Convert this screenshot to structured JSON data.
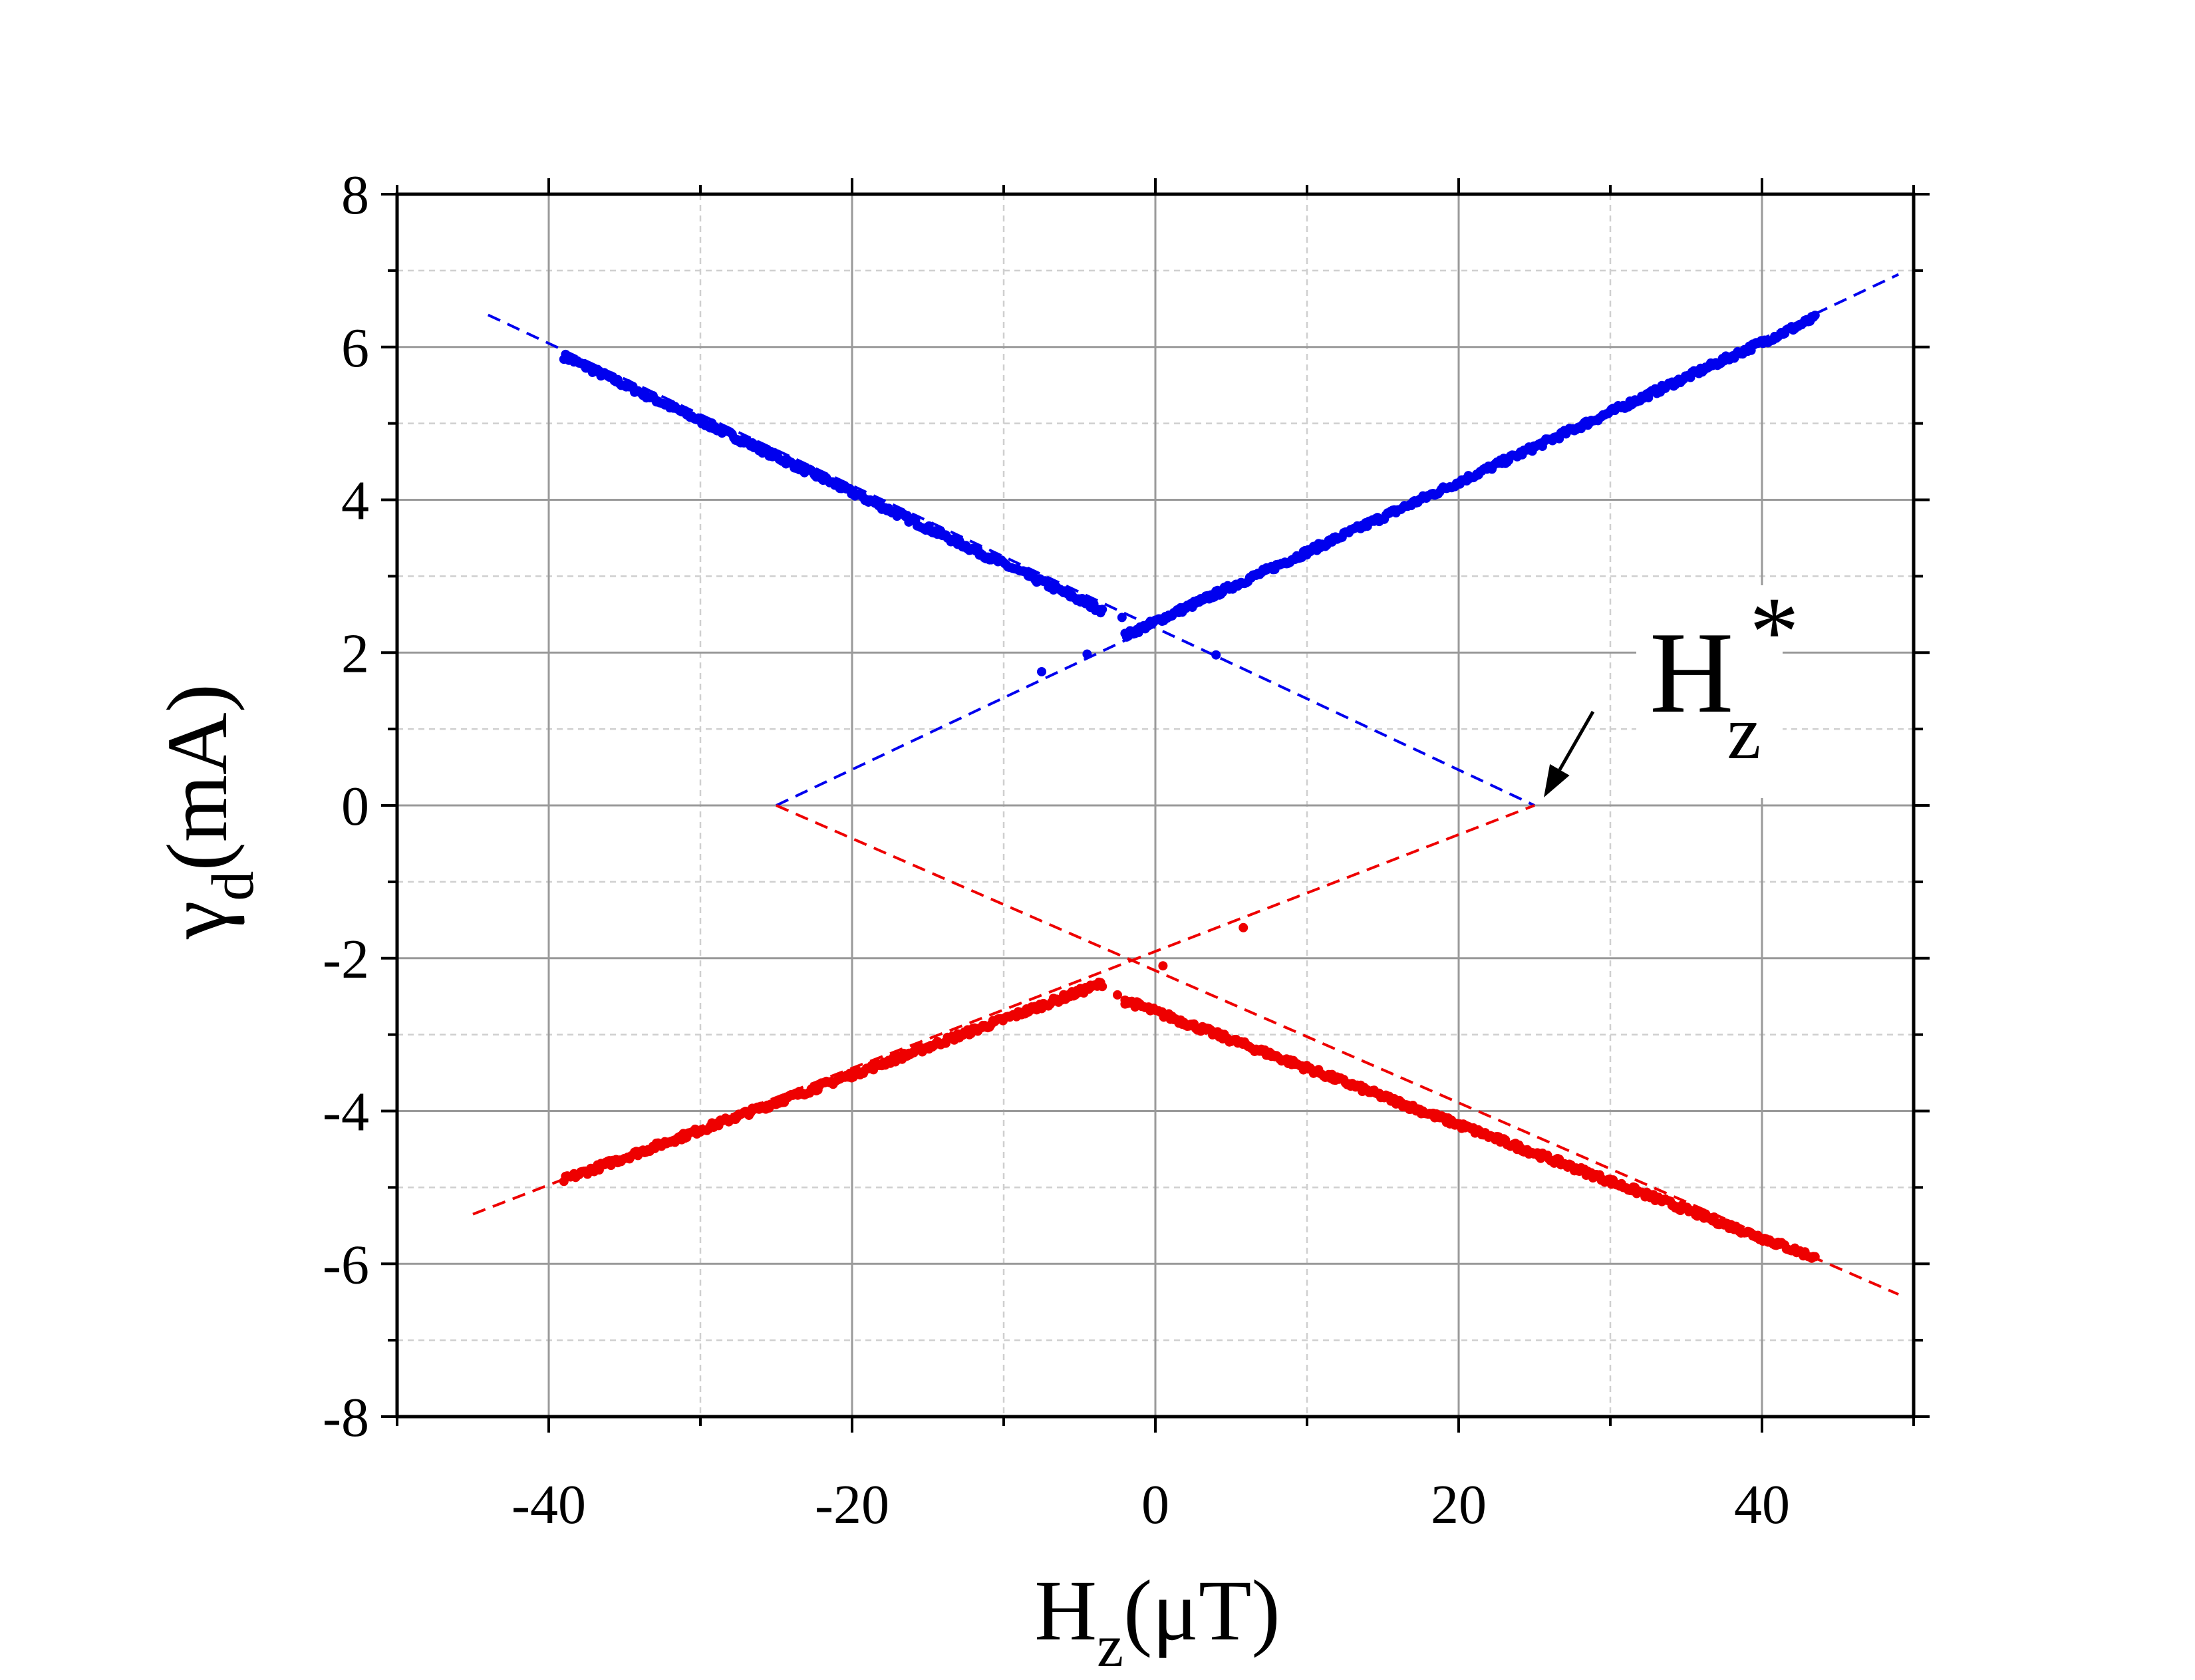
{
  "chart_data": {
    "type": "scatter",
    "title": "",
    "xlabel": {
      "main": "H",
      "sub": "z",
      "rest": "(μT)"
    },
    "ylabel": {
      "main": "γ",
      "sub": "d",
      "rest": "(mA)"
    },
    "xlim": [
      -50,
      50
    ],
    "ylim": [
      -8,
      8
    ],
    "x_ticks": [
      -40,
      -20,
      0,
      20,
      40
    ],
    "y_ticks": [
      -8,
      -6,
      -4,
      -2,
      0,
      2,
      4,
      6,
      8
    ],
    "x_minor_step": 10,
    "y_minor_step": 1,
    "grid": true,
    "legend": "none",
    "colors": {
      "blue": "#0000ee",
      "red": "#ee0000",
      "grid": "#9a9a9a",
      "grid_minor": "#cfcfcf"
    },
    "series": [
      {
        "color": "blue",
        "segments": [
          {
            "x_start": -39,
            "x_end": -3.5,
            "y_start": 5.88,
            "y_end": 2.55,
            "noise": 0.04
          },
          {
            "x_start": -2,
            "x_end": 43.5,
            "y_start": 2.22,
            "y_end": 6.38,
            "noise": 0.04
          }
        ],
        "outliers": [
          [
            -7.5,
            1.75
          ],
          [
            -4.5,
            1.98
          ],
          [
            -2.2,
            2.46
          ],
          [
            4,
            1.97
          ]
        ]
      },
      {
        "color": "red",
        "segments": [
          {
            "x_start": -39,
            "x_end": -3.5,
            "y_start": -4.9,
            "y_end": -2.33,
            "noise": 0.04
          },
          {
            "x_start": -2,
            "x_end": 43.5,
            "y_start": -2.55,
            "y_end": -5.92,
            "noise": 0.04
          }
        ],
        "outliers": [
          [
            0.5,
            -2.1
          ],
          [
            5.8,
            -1.6
          ],
          [
            -2.5,
            -2.48
          ],
          [
            -2.0,
            -2.6
          ]
        ]
      }
    ],
    "fit_lines": [
      {
        "color": "blue",
        "x": [
          -44,
          25
        ],
        "y": [
          6.42,
          0
        ]
      },
      {
        "color": "blue",
        "x": [
          -25,
          49
        ],
        "y": [
          0,
          6.95
        ]
      },
      {
        "color": "red",
        "x": [
          -25,
          49
        ],
        "y": [
          0,
          -6.4
        ]
      },
      {
        "color": "red",
        "x": [
          -45,
          25
        ],
        "y": [
          -5.35,
          0
        ]
      }
    ],
    "annotation": {
      "main": "H",
      "sub": "z",
      "sup": "*",
      "arrow_to": [
        25,
        0
      ]
    }
  }
}
